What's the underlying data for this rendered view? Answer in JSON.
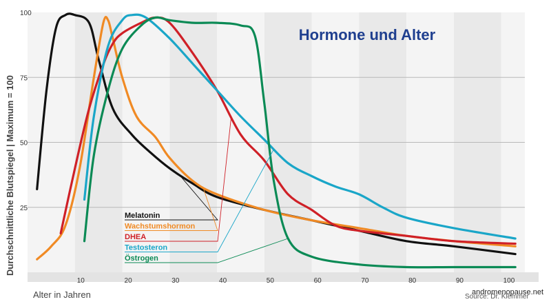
{
  "chart_data": {
    "type": "line",
    "title": "Hormone und Alter",
    "xlabel": "Alter in Jahren",
    "ylabel": "Durchschnittliche Blutspiegel | Maximum = 100",
    "xlim": [
      0,
      105
    ],
    "ylim": [
      0,
      100
    ],
    "x_ticks": [
      "10",
      "20",
      "30",
      "40",
      "50",
      "60",
      "70",
      "80",
      "90",
      "100"
    ],
    "y_ticks": [
      "25",
      "50",
      "75",
      "100"
    ],
    "grid": "vertical alternating bands, horizontal lines at 25 and 50",
    "legend_position": "lower-center",
    "source": "Source: Dr. Klemmer",
    "watermark": "andromenopause.net",
    "series": [
      {
        "name": "Melatonin",
        "color": "#111111",
        "points": [
          [
            2,
            32
          ],
          [
            4,
            70
          ],
          [
            6,
            94
          ],
          [
            8,
            99
          ],
          [
            10,
            99
          ],
          [
            13,
            96
          ],
          [
            15,
            82
          ],
          [
            18,
            63
          ],
          [
            22,
            53
          ],
          [
            26,
            46
          ],
          [
            30,
            40
          ],
          [
            35,
            34
          ],
          [
            40,
            29
          ],
          [
            50,
            24
          ],
          [
            60,
            20
          ],
          [
            70,
            16
          ],
          [
            80,
            12
          ],
          [
            90,
            10
          ],
          [
            103,
            7
          ]
        ]
      },
      {
        "name": "Wachstumshormon",
        "color": "#f08a24",
        "points": [
          [
            2,
            5
          ],
          [
            5,
            10
          ],
          [
            8,
            18
          ],
          [
            11,
            40
          ],
          [
            14,
            75
          ],
          [
            16,
            96
          ],
          [
            17,
            97
          ],
          [
            18,
            90
          ],
          [
            20,
            75
          ],
          [
            23,
            60
          ],
          [
            27,
            52
          ],
          [
            30,
            44
          ],
          [
            35,
            35
          ],
          [
            40,
            30
          ],
          [
            50,
            24
          ],
          [
            60,
            20
          ],
          [
            70,
            17
          ],
          [
            80,
            14
          ],
          [
            90,
            12
          ],
          [
            103,
            10
          ]
        ]
      },
      {
        "name": "DHEA",
        "color": "#cf2027",
        "points": [
          [
            7,
            15
          ],
          [
            10,
            40
          ],
          [
            13,
            63
          ],
          [
            16,
            80
          ],
          [
            18,
            88
          ],
          [
            20,
            92
          ],
          [
            24,
            96
          ],
          [
            27,
            98
          ],
          [
            30,
            96
          ],
          [
            35,
            84
          ],
          [
            40,
            70
          ],
          [
            45,
            53
          ],
          [
            50,
            43
          ],
          [
            55,
            30
          ],
          [
            60,
            24
          ],
          [
            65,
            18
          ],
          [
            70,
            16
          ],
          [
            80,
            14
          ],
          [
            90,
            12
          ],
          [
            103,
            11
          ]
        ]
      },
      {
        "name": "Testosteron",
        "color": "#1aa6c8",
        "points": [
          [
            12,
            28
          ],
          [
            14,
            60
          ],
          [
            17,
            87
          ],
          [
            20,
            97
          ],
          [
            22,
            99
          ],
          [
            25,
            98
          ],
          [
            30,
            90
          ],
          [
            35,
            80
          ],
          [
            40,
            70
          ],
          [
            45,
            60
          ],
          [
            50,
            51
          ],
          [
            55,
            42
          ],
          [
            60,
            37
          ],
          [
            65,
            33
          ],
          [
            70,
            30
          ],
          [
            75,
            25
          ],
          [
            80,
            21
          ],
          [
            90,
            17
          ],
          [
            103,
            13
          ]
        ]
      },
      {
        "name": "Östrogen",
        "color": "#0b8a55",
        "points": [
          [
            12,
            12
          ],
          [
            14,
            45
          ],
          [
            17,
            70
          ],
          [
            20,
            86
          ],
          [
            24,
            95
          ],
          [
            27,
            98
          ],
          [
            30,
            97
          ],
          [
            35,
            96
          ],
          [
            40,
            96
          ],
          [
            45,
            95
          ],
          [
            48,
            91
          ],
          [
            50,
            65
          ],
          [
            52,
            35
          ],
          [
            55,
            13
          ],
          [
            60,
            6
          ],
          [
            70,
            3
          ],
          [
            80,
            2
          ],
          [
            90,
            2
          ],
          [
            103,
            2
          ]
        ]
      }
    ]
  }
}
